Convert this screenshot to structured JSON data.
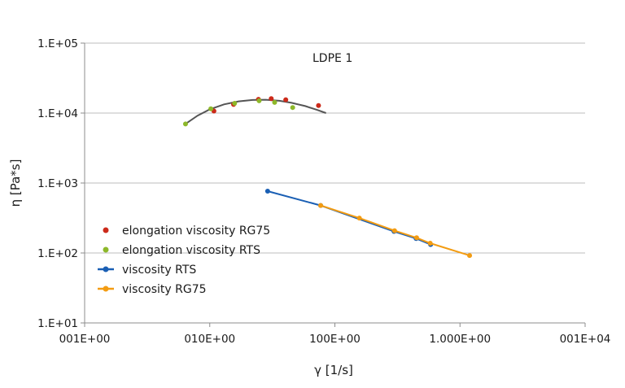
{
  "chart_data": {
    "type": "scatter",
    "title": "",
    "annotation": "LDPE 1",
    "xlabel": "γ [1/s]",
    "ylabel": "η [Pa*s]",
    "xscale": "log",
    "yscale": "log",
    "xlim": [
      1,
      10000
    ],
    "ylim": [
      10,
      100000
    ],
    "x_ticks": [
      {
        "value": 1,
        "label": "001E+00"
      },
      {
        "value": 10,
        "label": "010E+00"
      },
      {
        "value": 100,
        "label": "100E+00"
      },
      {
        "value": 1000,
        "label": "1.000E+00"
      },
      {
        "value": 10000,
        "label": "001E+04"
      }
    ],
    "y_ticks": [
      {
        "value": 10,
        "label": "1.E+01"
      },
      {
        "value": 100,
        "label": "1.E+02"
      },
      {
        "value": 1000,
        "label": "1.E+03"
      },
      {
        "value": 10000,
        "label": "1.E+04"
      },
      {
        "value": 100000,
        "label": "1.E+05"
      }
    ],
    "grid": "horizontal",
    "legend_position": "bottom-left",
    "series": [
      {
        "name": "elongation viscosity RG75",
        "kind": "markers",
        "color": "#cc2a1a",
        "x": [
          10.8,
          15.5,
          24.5,
          31.0,
          40.5,
          74.0
        ],
        "y": [
          10700,
          13300,
          15700,
          16100,
          15500,
          12800
        ]
      },
      {
        "name": "elongation viscosity RTS",
        "kind": "markers",
        "color": "#8db82a",
        "x": [
          6.4,
          10.2,
          15.8,
          24.8,
          33.0,
          46.0
        ],
        "y": [
          7000,
          11500,
          13800,
          15000,
          14200,
          12000
        ]
      },
      {
        "name": "viscosity RTS",
        "kind": "line+markers",
        "color": "#1a5fb4",
        "x": [
          29.0,
          77.0,
          297.0,
          446.0,
          582.0
        ],
        "y": [
          765,
          478,
          203,
          161,
          132
        ]
      },
      {
        "name": "viscosity RG75",
        "kind": "line+markers",
        "color": "#f39c12",
        "x": [
          77.0,
          157.0,
          300.0,
          450.0,
          578.0,
          1193.0
        ],
        "y": [
          478,
          315,
          208,
          165,
          138,
          92
        ]
      }
    ],
    "trendline": {
      "color": "#555555",
      "x": [
        6.4,
        8,
        10,
        13,
        17,
        22,
        28,
        36,
        45,
        58,
        72,
        85
      ],
      "y": [
        7000,
        9200,
        11300,
        13300,
        14700,
        15400,
        15500,
        15000,
        14000,
        12600,
        11100,
        10000
      ]
    }
  }
}
